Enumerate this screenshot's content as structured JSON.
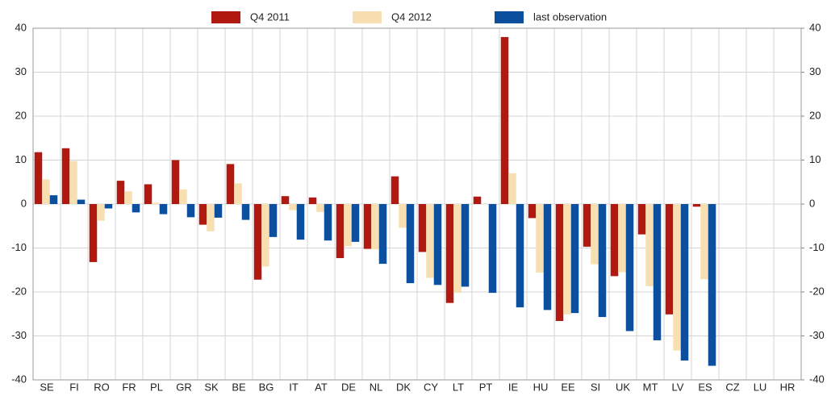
{
  "chart_data": {
    "type": "bar",
    "categories": [
      "SE",
      "FI",
      "RO",
      "FR",
      "PL",
      "GR",
      "SK",
      "BE",
      "BG",
      "IT",
      "AT",
      "DE",
      "NL",
      "DK",
      "CY",
      "LT",
      "PT",
      "IE",
      "HU",
      "EE",
      "SI",
      "UK",
      "MT",
      "LV",
      "ES",
      "CZ",
      "LU",
      "HR"
    ],
    "series": [
      {
        "name": "Q4 2011",
        "color": "#b01810",
        "values": [
          11.8,
          12.7,
          -13.2,
          5.3,
          4.5,
          10.0,
          -4.7,
          9.1,
          -17.2,
          1.8,
          1.5,
          -12.3,
          -10.2,
          6.3,
          -10.9,
          -22.5,
          1.7,
          38.0,
          -3.2,
          -26.6,
          -9.7,
          -16.4,
          -6.9,
          -25.1,
          -0.6,
          null,
          null,
          null
        ]
      },
      {
        "name": "Q4 2012",
        "color": "#f8dfb2",
        "values": [
          5.6,
          9.8,
          -3.8,
          2.9,
          0.3,
          3.3,
          -6.2,
          4.7,
          -14.2,
          -1.4,
          -1.8,
          -9.6,
          -10.3,
          -5.4,
          -16.8,
          -20.2,
          null,
          7.0,
          -15.6,
          -25.1,
          -13.7,
          -15.5,
          -18.7,
          -33.3,
          -17.1,
          null,
          null,
          null
        ]
      },
      {
        "name": "last observation",
        "color": "#0c4f9e",
        "values": [
          2.0,
          1.0,
          -1.0,
          -1.9,
          -2.3,
          -3.0,
          -3.1,
          -3.6,
          -7.5,
          -8.1,
          -8.3,
          -8.6,
          -13.6,
          -18.0,
          -18.4,
          -18.8,
          -20.2,
          -23.5,
          -24.1,
          -24.8,
          -25.7,
          -28.9,
          -31.0,
          -35.6,
          -36.8,
          null,
          null,
          null
        ]
      }
    ],
    "ylim": [
      -40,
      40
    ],
    "yticks": [
      -40,
      -30,
      -20,
      -10,
      0,
      10,
      20,
      30,
      40
    ],
    "y2lim": [
      -40,
      40
    ],
    "y2ticks": [
      -40,
      -30,
      -20,
      -10,
      0,
      10,
      20,
      30,
      40
    ],
    "grid": true
  }
}
